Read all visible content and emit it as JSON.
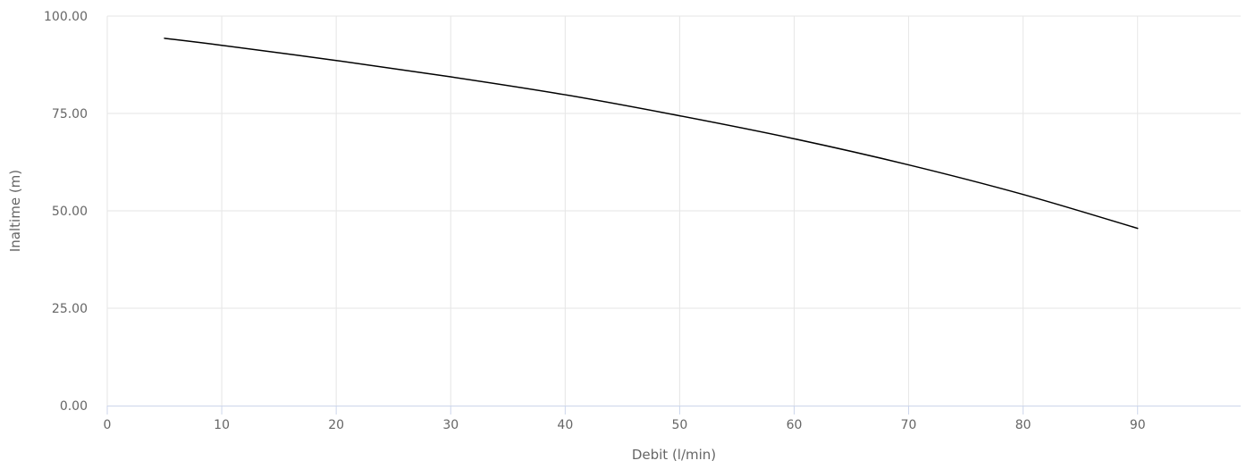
{
  "chart_data": {
    "type": "line",
    "xlabel": "Debit (l/min)",
    "ylabel": "Inaltime (m)",
    "xlim": [
      0,
      99
    ],
    "ylim": [
      0,
      100
    ],
    "x_ticks": [
      "0",
      "10",
      "20",
      "30",
      "40",
      "50",
      "60",
      "70",
      "80",
      "90"
    ],
    "y_ticks": [
      "0.00",
      "25.00",
      "50.00",
      "75.00",
      "100.00"
    ],
    "grid": true,
    "legend": "none",
    "series": [
      {
        "color": "#000000",
        "x": [
          5,
          10,
          20,
          30,
          40,
          50,
          60,
          70,
          80,
          90
        ],
        "y": [
          94.3,
          92.5,
          88.6,
          84.4,
          79.8,
          74.4,
          68.5,
          61.8,
          54.2,
          45.5
        ]
      }
    ]
  }
}
